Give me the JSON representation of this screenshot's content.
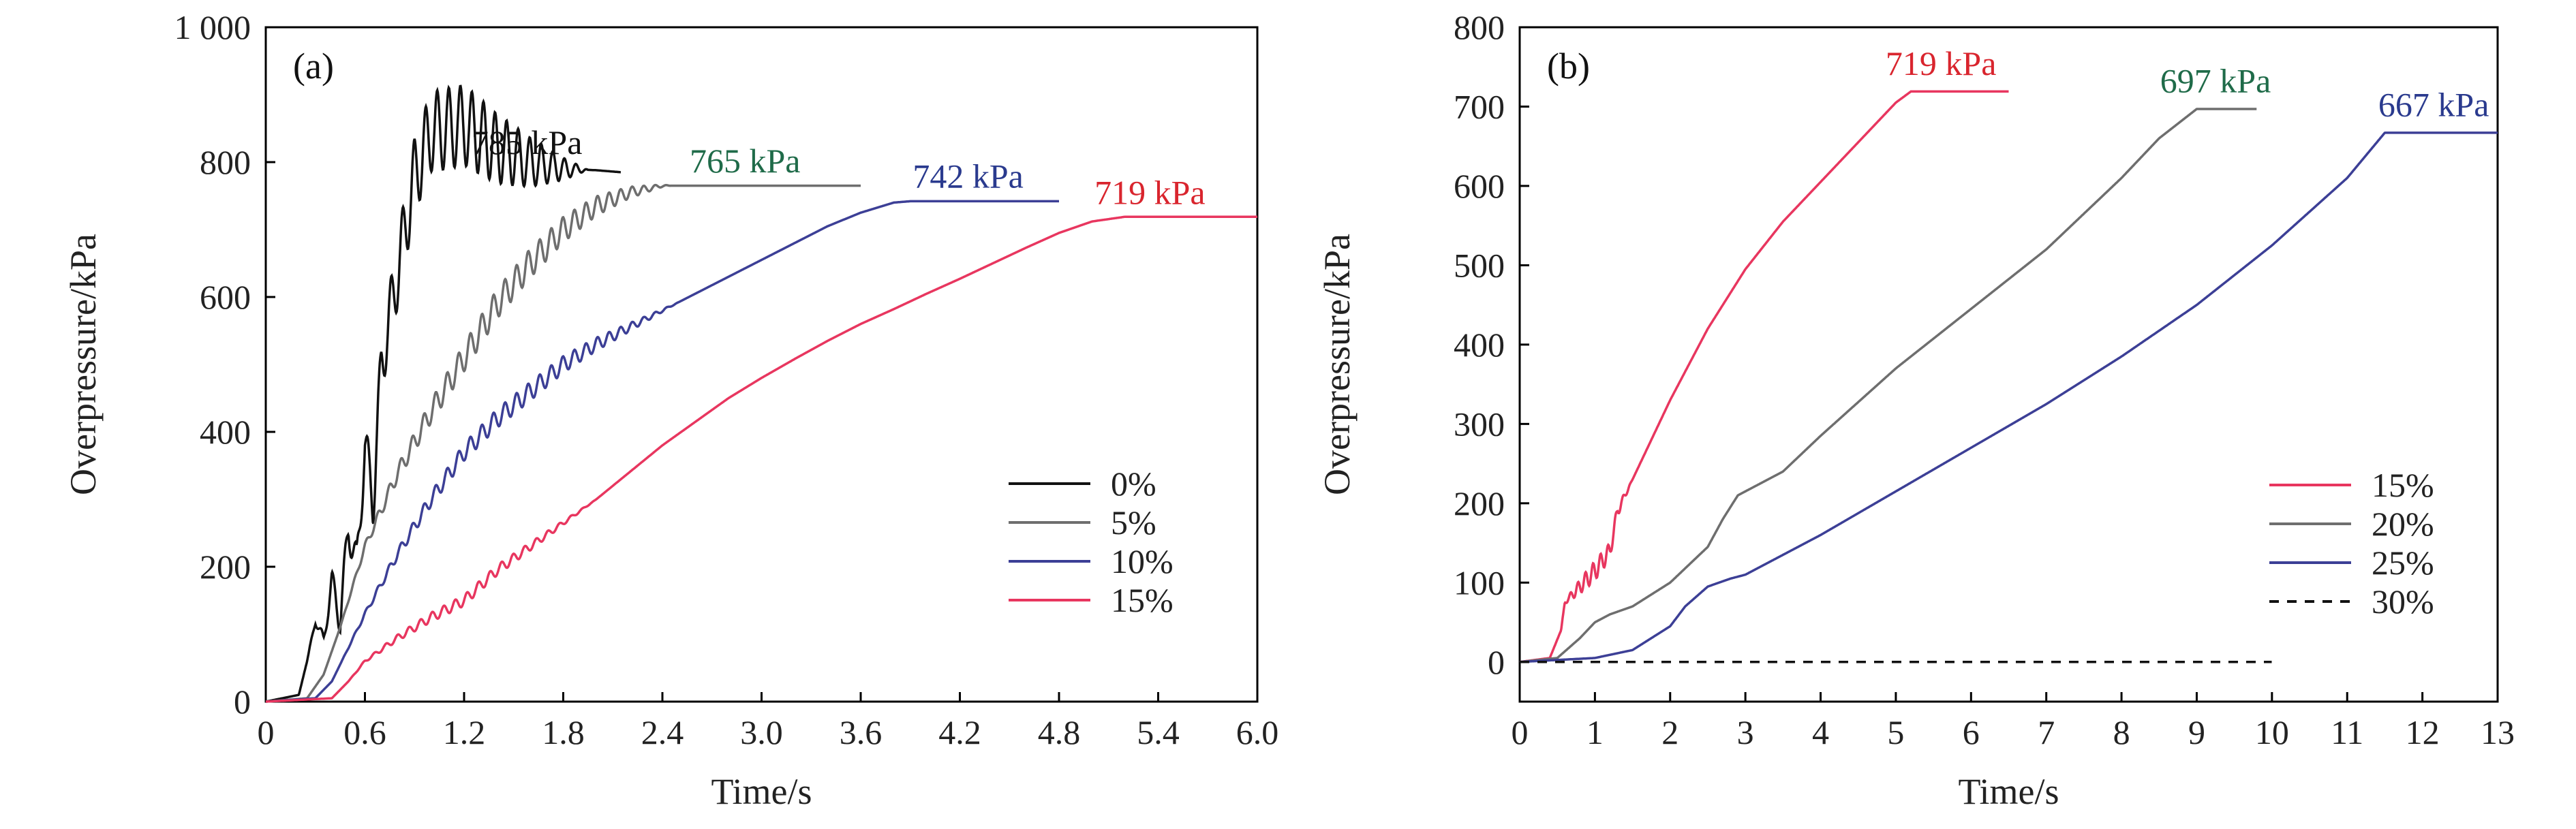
{
  "colors": {
    "black": "#111111",
    "gray": "#6e6e6e",
    "green": "#2e7d60",
    "blue": "#3c3f96",
    "red": "#e8365f",
    "annot_red": "#d9252e",
    "annot_green": "#1f6b49",
    "annot_blue": "#2a3a8e"
  },
  "chart_data": [
    {
      "type": "line",
      "panel_label": "(a)",
      "xlabel": "Time/s",
      "ylabel": "Overpressure/kPa",
      "xlim": [
        0,
        6.0
      ],
      "ylim": [
        0,
        1000
      ],
      "xticks": [
        "0",
        "0.6",
        "1.2",
        "1.8",
        "2.4",
        "3.0",
        "3.6",
        "4.2",
        "4.8",
        "5.4",
        "6.0"
      ],
      "yticks": [
        "0",
        "200",
        "400",
        "600",
        "800",
        "1 000"
      ],
      "legend_position": "lower-right",
      "series": [
        {
          "name": "0%",
          "color": "black",
          "x": [
            0,
            0.2,
            0.25,
            0.3,
            0.35,
            0.4,
            0.45,
            0.5,
            0.55,
            0.6,
            0.65,
            0.7,
            0.8,
            0.9,
            1.0,
            1.2,
            1.4,
            1.6,
            1.8,
            2.0,
            2.15
          ],
          "y": [
            0,
            10,
            60,
            120,
            90,
            180,
            120,
            260,
            200,
            380,
            300,
            500,
            640,
            780,
            845,
            855,
            820,
            800,
            790,
            788,
            785
          ],
          "osc_start": 0.25,
          "osc_end": 1.95,
          "osc_amp": 60,
          "osc_period": 0.07
        },
        {
          "name": "5%",
          "color": "gray",
          "x": [
            0,
            0.25,
            0.35,
            0.45,
            0.6,
            0.8,
            1.0,
            1.2,
            1.4,
            1.6,
            1.8,
            2.0,
            2.2,
            2.4,
            2.6,
            3.0,
            3.6
          ],
          "y": [
            0,
            5,
            40,
            110,
            230,
            340,
            430,
            510,
            590,
            650,
            700,
            735,
            755,
            765,
            765,
            765,
            765
          ],
          "osc_start": 0.45,
          "osc_end": 2.45,
          "osc_amp": 22,
          "osc_period": 0.07
        },
        {
          "name": "10%",
          "color": "blue",
          "x": [
            0,
            0.3,
            0.4,
            0.5,
            0.6,
            0.8,
            1.0,
            1.2,
            1.4,
            1.6,
            1.8,
            2.0,
            2.2,
            2.4,
            2.6,
            2.8,
            3.0,
            3.2,
            3.4,
            3.6,
            3.8,
            3.9,
            4.8
          ],
          "y": [
            0,
            5,
            30,
            80,
            130,
            220,
            300,
            370,
            420,
            460,
            500,
            530,
            555,
            580,
            605,
            630,
            655,
            680,
            705,
            725,
            740,
            742,
            742
          ],
          "osc_start": 0.45,
          "osc_end": 2.5,
          "osc_amp": 14,
          "osc_period": 0.07
        },
        {
          "name": "15%",
          "color": "red",
          "x": [
            0,
            0.4,
            0.5,
            0.6,
            0.8,
            1.0,
            1.2,
            1.4,
            1.6,
            1.8,
            2.0,
            2.2,
            2.4,
            2.6,
            2.8,
            3.0,
            3.2,
            3.4,
            3.6,
            3.8,
            4.0,
            4.2,
            4.4,
            4.6,
            4.8,
            5.0,
            5.2,
            6.0
          ],
          "y": [
            0,
            5,
            30,
            60,
            95,
            125,
            150,
            195,
            230,
            265,
            300,
            340,
            380,
            415,
            450,
            480,
            508,
            535,
            560,
            582,
            605,
            627,
            650,
            673,
            695,
            712,
            719,
            719
          ],
          "osc_start": 0.5,
          "osc_end": 2.0,
          "osc_amp": 8,
          "osc_period": 0.07
        }
      ],
      "annotations": [
        {
          "text": "785 kPa",
          "x": 1.58,
          "y": 812,
          "color": "black"
        },
        {
          "text": "765 kPa",
          "x": 2.9,
          "y": 785,
          "color": "annot_green"
        },
        {
          "text": "742 kPa",
          "x": 4.25,
          "y": 762,
          "color": "annot_blue"
        },
        {
          "text": "719 kPa",
          "x": 5.35,
          "y": 738,
          "color": "annot_red"
        }
      ]
    },
    {
      "type": "line",
      "panel_label": "(b)",
      "xlabel": "Time/s",
      "ylabel": "Overpressure/kPa",
      "xlim": [
        0,
        13
      ],
      "ylim": [
        -50,
        800
      ],
      "xticks": [
        "0",
        "1",
        "2",
        "3",
        "4",
        "5",
        "6",
        "7",
        "8",
        "9",
        "10",
        "11",
        "12",
        "13"
      ],
      "yticks": [
        "0",
        "100",
        "200",
        "300",
        "400",
        "500",
        "600",
        "700",
        "800"
      ],
      "legend_position": "lower-right",
      "series": [
        {
          "name": "15%",
          "color": "red",
          "x": [
            0,
            0.4,
            0.55,
            0.6,
            0.8,
            1.0,
            1.2,
            1.3,
            1.5,
            2.0,
            2.5,
            3.0,
            3.5,
            4.0,
            4.5,
            5.0,
            5.2,
            6.5
          ],
          "y": [
            0,
            5,
            40,
            75,
            95,
            115,
            140,
            190,
            230,
            330,
            420,
            495,
            555,
            605,
            655,
            705,
            719,
            719
          ],
          "osc_start": 0.55,
          "osc_end": 1.5,
          "osc_amp": 12,
          "osc_period": 0.1
        },
        {
          "name": "20%",
          "color": "gray",
          "x": [
            0,
            0.5,
            0.8,
            1.0,
            1.2,
            1.5,
            2.0,
            2.5,
            2.7,
            2.9,
            3.0,
            3.5,
            4.0,
            5.0,
            6.0,
            7.0,
            8.0,
            8.5,
            9.0,
            9.8
          ],
          "y": [
            0,
            5,
            30,
            50,
            60,
            70,
            100,
            145,
            180,
            210,
            215,
            240,
            285,
            370,
            445,
            520,
            610,
            660,
            697,
            697
          ],
          "osc_start": 0,
          "osc_end": 0,
          "osc_amp": 0,
          "osc_period": 0.1
        },
        {
          "name": "25%",
          "color": "blue",
          "x": [
            0,
            1.0,
            1.5,
            2.0,
            2.2,
            2.5,
            2.8,
            3.0,
            4.0,
            5.0,
            6.0,
            7.0,
            8.0,
            9.0,
            10.0,
            11.0,
            11.5,
            13.0
          ],
          "y": [
            0,
            5,
            15,
            45,
            70,
            95,
            105,
            110,
            160,
            215,
            270,
            325,
            385,
            450,
            525,
            610,
            667,
            667
          ],
          "osc_start": 0,
          "osc_end": 0,
          "osc_amp": 0,
          "osc_period": 0.1
        },
        {
          "name": "30%",
          "color": "black",
          "dashed": true,
          "x": [
            0,
            10.0
          ],
          "y": [
            0,
            0
          ],
          "osc_start": 0,
          "osc_end": 0,
          "osc_amp": 0,
          "osc_period": 0.1
        }
      ],
      "annotations": [
        {
          "text": "719 kPa",
          "x": 5.6,
          "y": 740,
          "color": "annot_red"
        },
        {
          "text": "697 kPa",
          "x": 9.25,
          "y": 718,
          "color": "annot_green"
        },
        {
          "text": "667 kPa",
          "x": 12.15,
          "y": 688,
          "color": "annot_blue"
        }
      ]
    }
  ]
}
